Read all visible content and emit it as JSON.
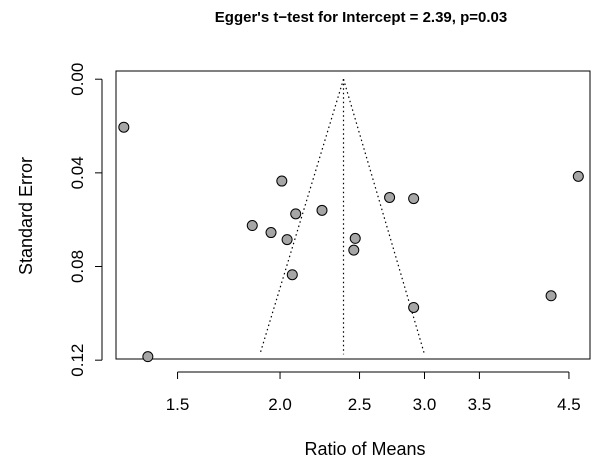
{
  "chart_data": {
    "type": "scatter",
    "title": "Egger's t−test for Intercept = 2.39, p=0.03",
    "xlabel": "Ratio of Means",
    "ylabel": "Standard Error",
    "x_ticks": [
      1.5,
      2.0,
      2.5,
      3.0,
      3.5,
      4.5
    ],
    "x_tick_labels": [
      "1.5",
      "2.0",
      "2.5",
      "3.0",
      "3.5",
      "4.5"
    ],
    "x_log_scale": true,
    "xlim": [
      1.262,
      4.774
    ],
    "y_ticks": [
      0.0,
      0.04,
      0.08,
      0.12
    ],
    "y_tick_labels": [
      "0.00",
      "0.04",
      "0.08",
      "0.12"
    ],
    "ylim": [
      0.1195,
      -0.0035
    ],
    "y_reversed": true,
    "pooled_estimate": 2.39,
    "funnel": {
      "apex": [
        2.39,
        0.0
      ],
      "bottom_left": [
        1.89,
        0.1175
      ],
      "bottom_right": [
        3.0,
        0.1175
      ]
    },
    "points": [
      {
        "x": 1.29,
        "y": 0.0205
      },
      {
        "x": 1.38,
        "y": 0.1185
      },
      {
        "x": 1.85,
        "y": 0.0625
      },
      {
        "x": 1.95,
        "y": 0.0655
      },
      {
        "x": 2.01,
        "y": 0.0435
      },
      {
        "x": 2.04,
        "y": 0.0685
      },
      {
        "x": 2.07,
        "y": 0.0835
      },
      {
        "x": 2.09,
        "y": 0.0575
      },
      {
        "x": 2.25,
        "y": 0.056
      },
      {
        "x": 2.46,
        "y": 0.073
      },
      {
        "x": 2.47,
        "y": 0.068
      },
      {
        "x": 2.72,
        "y": 0.0505
      },
      {
        "x": 2.91,
        "y": 0.051
      },
      {
        "x": 2.91,
        "y": 0.0975
      },
      {
        "x": 4.28,
        "y": 0.0925
      },
      {
        "x": 4.62,
        "y": 0.0415
      }
    ]
  }
}
